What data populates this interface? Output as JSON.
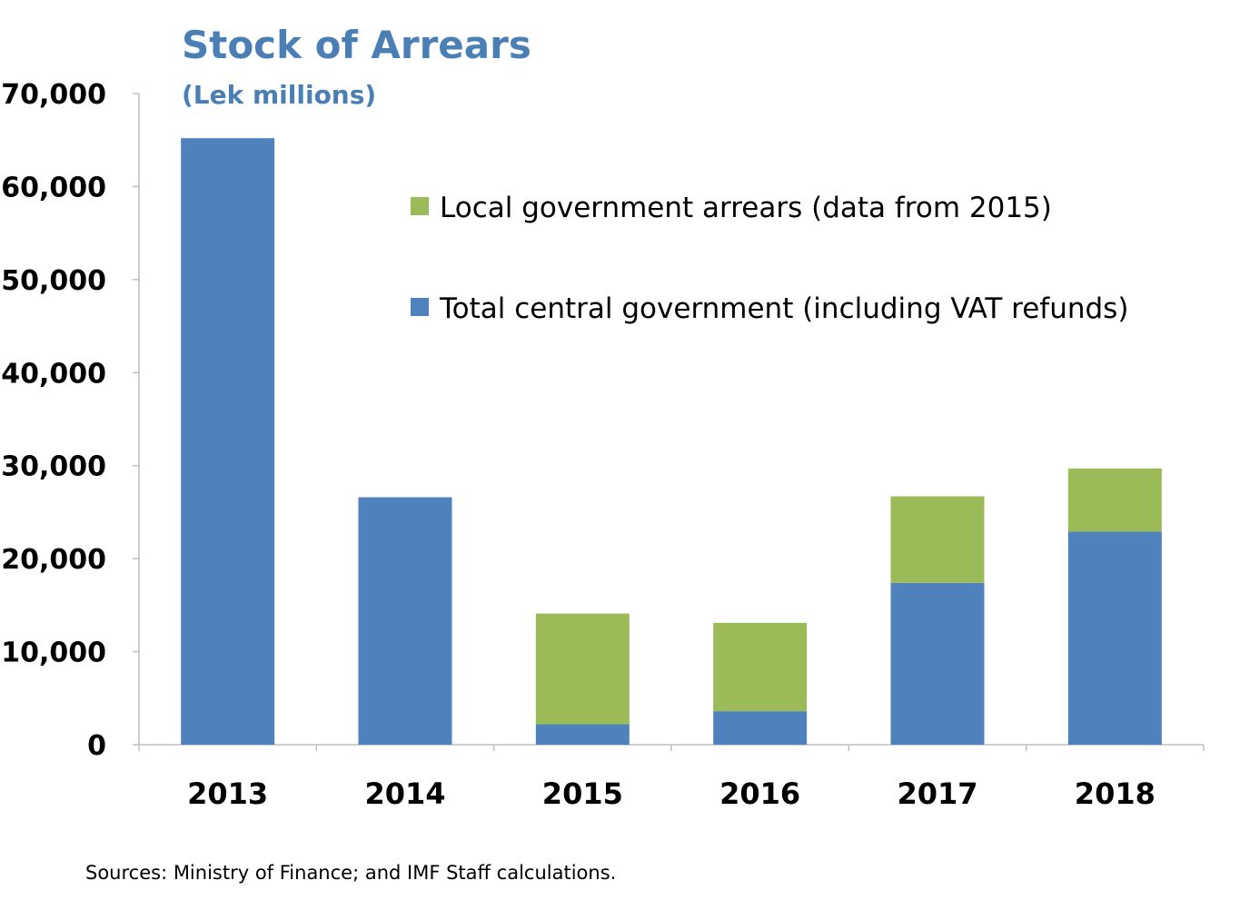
{
  "chart_data": {
    "type": "bar",
    "stacked": true,
    "title": "Stock of Arrears",
    "subtitle": "(Lek millions)",
    "xlabel": "",
    "ylabel": "",
    "categories": [
      "2013",
      "2014",
      "2015",
      "2016",
      "2017",
      "2018"
    ],
    "series": [
      {
        "name": "Total central government (including VAT refunds)",
        "color": "#4f81bd",
        "values": [
          65200,
          26600,
          2200,
          3600,
          17400,
          22900
        ]
      },
      {
        "name": "Local government arrears (data from 2015)",
        "color": "#9bbb59",
        "values": [
          0,
          0,
          11900,
          9500,
          9300,
          6800
        ]
      }
    ],
    "ylim": [
      0,
      70000
    ],
    "yticks": [
      0,
      10000,
      20000,
      30000,
      40000,
      50000,
      60000,
      70000
    ],
    "ytick_labels": [
      "0",
      "10,000",
      "20,000",
      "30,000",
      "40,000",
      "50,000",
      "60,000",
      "70,000"
    ],
    "grid": false,
    "legend_position": "top-right",
    "title_color": "#4a7fb5",
    "source": "Sources: Ministry of Finance; and IMF Staff calculations."
  }
}
